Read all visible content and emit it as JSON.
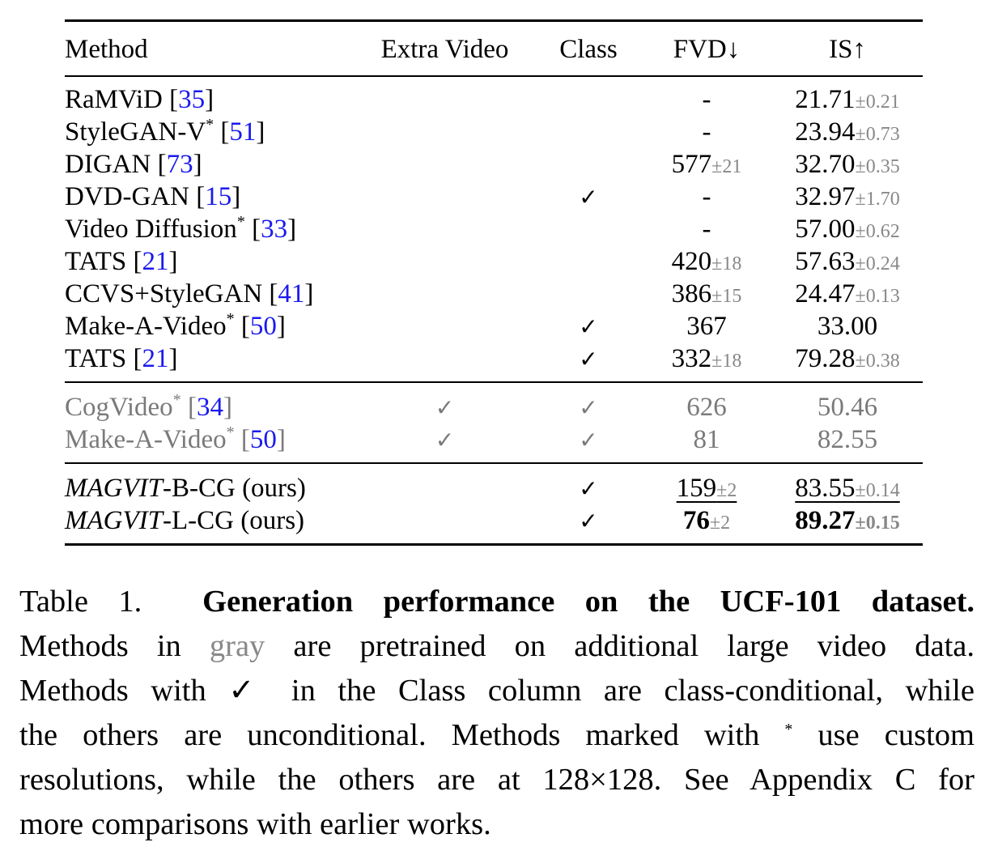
{
  "table": {
    "headers": [
      "Method",
      "Extra Video",
      "Class",
      "FVD↓",
      "IS↑"
    ],
    "sections": [
      {
        "gray": false,
        "rows": [
          {
            "method": "RaMViD",
            "star": false,
            "ref": "35",
            "extra": "",
            "class": "",
            "fvd": "-",
            "fvd_pm": "",
            "is": "21.71",
            "is_pm": "±0.21"
          },
          {
            "method": "StyleGAN-V",
            "star": true,
            "ref": "51",
            "extra": "",
            "class": "",
            "fvd": "-",
            "fvd_pm": "",
            "is": "23.94",
            "is_pm": "±0.73"
          },
          {
            "method": "DIGAN",
            "star": false,
            "ref": "73",
            "extra": "",
            "class": "",
            "fvd": "577",
            "fvd_pm": "±21",
            "is": "32.70",
            "is_pm": "±0.35"
          },
          {
            "method": "DVD-GAN",
            "star": false,
            "ref": "15",
            "extra": "",
            "class": "✓",
            "fvd": "-",
            "fvd_pm": "",
            "is": "32.97",
            "is_pm": "±1.70"
          },
          {
            "method": "Video Diffusion",
            "star": true,
            "ref": "33",
            "extra": "",
            "class": "",
            "fvd": "-",
            "fvd_pm": "",
            "is": "57.00",
            "is_pm": "±0.62"
          },
          {
            "method": "TATS",
            "star": false,
            "ref": "21",
            "extra": "",
            "class": "",
            "fvd": "420",
            "fvd_pm": "±18",
            "is": "57.63",
            "is_pm": "±0.24"
          },
          {
            "method": "CCVS+StyleGAN",
            "star": false,
            "ref": "41",
            "extra": "",
            "class": "",
            "fvd": "386",
            "fvd_pm": "±15",
            "is": "24.47",
            "is_pm": "±0.13"
          },
          {
            "method": "Make-A-Video",
            "star": true,
            "ref": "50",
            "extra": "",
            "class": "✓",
            "fvd": "367",
            "fvd_pm": "",
            "is": "33.00",
            "is_pm": ""
          },
          {
            "method": "TATS",
            "star": false,
            "ref": "21",
            "extra": "",
            "class": "✓",
            "fvd": "332",
            "fvd_pm": "±18",
            "is": "79.28",
            "is_pm": "±0.38"
          }
        ]
      },
      {
        "gray": true,
        "rows": [
          {
            "method": "CogVideo",
            "star": true,
            "ref": "34",
            "extra": "✓",
            "class": "✓",
            "fvd": "626",
            "fvd_pm": "",
            "is": "50.46",
            "is_pm": ""
          },
          {
            "method": "Make-A-Video",
            "star": true,
            "ref": "50",
            "extra": "✓",
            "class": "✓",
            "fvd": "81",
            "fvd_pm": "",
            "is": "82.55",
            "is_pm": ""
          }
        ]
      },
      {
        "gray": false,
        "rows": [
          {
            "method_italic": "MAGVIT",
            "method": "-B-CG (ours)",
            "star": false,
            "ref": "",
            "extra": "",
            "class": "✓",
            "fvd": "159",
            "fvd_pm": "±2",
            "is": "83.55",
            "is_pm": "±0.14",
            "underline": true,
            "bold": false
          },
          {
            "method_italic": "MAGVIT",
            "method": "-L-CG (ours)",
            "star": false,
            "ref": "",
            "extra": "",
            "class": "✓",
            "fvd": "76",
            "fvd_pm": "±2",
            "is": "89.27",
            "is_pm": "±0.15",
            "underline": false,
            "bold": true
          }
        ]
      }
    ]
  },
  "caption": {
    "label": "Table 1.",
    "title": "Generation performance on the UCF-101 dataset.",
    "lines": [
      [
        "Methods in ",
        "gray",
        " are pretrained on additional large video data."
      ],
      [
        "Methods with ✓ in the Class column are class-conditional, while"
      ],
      [
        "the others are unconditional. Methods marked with ",
        "*",
        " use custom"
      ],
      [
        "resolutions, while the others are at 128×128. See Appendix C for"
      ],
      [
        "more comparisons with earlier works."
      ]
    ]
  }
}
